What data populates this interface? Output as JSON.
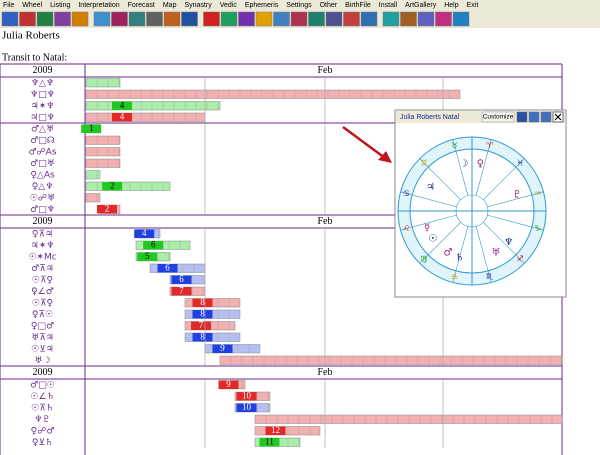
{
  "menu": [
    "File",
    "Wheel",
    "Listing",
    "Interpretation",
    "Forecast",
    "Map",
    "Synastry",
    "Vedic",
    "Ephemeris",
    "Settings",
    "Other",
    "BirthFile",
    "Install",
    "ArtGallery",
    "Help",
    "Exit"
  ],
  "header": {
    "name": "Julia Roberts",
    "subtitle": "Transit to Natal:"
  },
  "table": {
    "blocks": [
      {
        "year": "2009",
        "month": "Feb",
        "rows": [
          {
            "aspect": "♆△♆"
          },
          {
            "aspect": "♆□♆"
          },
          {
            "aspect": "♃✶♆",
            "label": "4"
          },
          {
            "aspect": "♃□♆",
            "label": "4"
          }
        ]
      },
      {
        "rows": [
          {
            "aspect": "♂△♅",
            "label": "1"
          },
          {
            "aspect": "♂□☊"
          },
          {
            "aspect": "♂☍As"
          },
          {
            "aspect": "♂□♅"
          },
          {
            "aspect": "♀△As"
          },
          {
            "aspect": "♀△♆",
            "label": "2"
          },
          {
            "aspect": "☉☍♅"
          },
          {
            "aspect": "♂□♆",
            "label": "2"
          }
        ]
      },
      {
        "year": "2009",
        "month": "Feb",
        "rows": [
          {
            "aspect": "♀⊼♃",
            "label": "4"
          },
          {
            "aspect": "♃✶♆",
            "label": "6"
          },
          {
            "aspect": "☉✶Mc",
            "label": "5"
          },
          {
            "aspect": "♂⊼♃",
            "label": "6"
          },
          {
            "aspect": "☉⊼♀",
            "label": "6"
          },
          {
            "aspect": "♀∠♂",
            "label": "7"
          },
          {
            "aspect": "☉⊼♀",
            "label": "8"
          },
          {
            "aspect": "♀⊼☉",
            "label": "8"
          },
          {
            "aspect": "♀□♂",
            "label": "7"
          },
          {
            "aspect": "♅⊼♃",
            "label": "8"
          },
          {
            "aspect": "☉⊻♃",
            "label": "9"
          },
          {
            "aspect": "♅☽"
          }
        ]
      },
      {
        "year": "2009",
        "month": "Feb",
        "rows": [
          {
            "aspect": "♂□☉",
            "label": "9"
          },
          {
            "aspect": "☉∠♄",
            "label": "10"
          },
          {
            "aspect": "☉⊼♄",
            "label": "10"
          },
          {
            "aspect": "♆♇"
          },
          {
            "aspect": "♀☍♂",
            "label": "12"
          },
          {
            "aspect": "♀⊻♄",
            "label": "11"
          }
        ]
      }
    ]
  },
  "popup": {
    "title": "Julia Roberts  Natal",
    "button": "Customize",
    "signs": [
      "♈",
      "♉",
      "♊",
      "♋",
      "♌",
      "♍",
      "♎",
      "♏",
      "♐",
      "♑",
      "♒",
      "♓"
    ],
    "planets": [
      "☽",
      "♀",
      "♃",
      "☿",
      "☉",
      "♂",
      "♄",
      "♅",
      "♆",
      "♇"
    ]
  }
}
